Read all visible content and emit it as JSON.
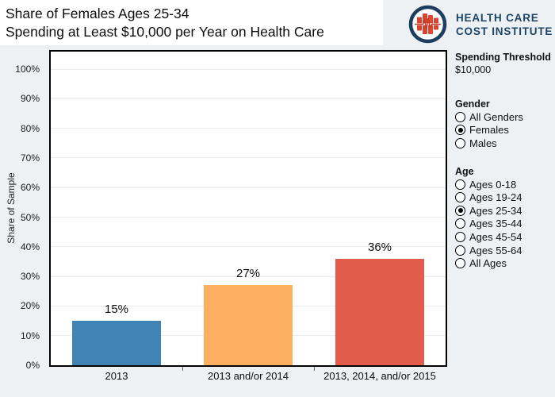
{
  "page": {
    "background": "#EDF1F4",
    "plot_background": "#FFFFFF"
  },
  "header": {
    "title_line1": "Share of Females Ages 25-34",
    "title_line2": "Spending at Least $10,000 per Year on Health Care"
  },
  "logo": {
    "icon": "hcci-bars-ekg-icon",
    "text_line1": "HEALTH CARE",
    "text_line2": "COST INSTITUTE",
    "navy": "#1C4467",
    "red": "#D9432F"
  },
  "filters": {
    "spending_threshold": {
      "label": "Spending Threshold",
      "value": "$10,000"
    },
    "gender": {
      "label": "Gender",
      "options": [
        "All Genders",
        "Females",
        "Males"
      ],
      "selected": "Females"
    },
    "age": {
      "label": "Age",
      "options": [
        "Ages 0-18",
        "Ages 19-24",
        "Ages 25-34",
        "Ages 35-44",
        "Ages 45-54",
        "Ages 55-64",
        "All Ages"
      ],
      "selected": "Ages 25-34"
    }
  },
  "chart_data": {
    "type": "bar",
    "categories": [
      "2013",
      "2013 and/or 2014",
      "2013, 2014, and/or 2015"
    ],
    "values": [
      15,
      27,
      36
    ],
    "data_labels": [
      "15%",
      "27%",
      "36%"
    ],
    "colors": [
      "#4283B6",
      "#FCAE61",
      "#E25B4B"
    ],
    "title": "Share of Females Ages 25-34 Spending at Least $10,000 per Year on Health Care",
    "xlabel": "",
    "ylabel": "Share of Sample",
    "y_ticks": [
      "0%",
      "10%",
      "20%",
      "30%",
      "40%",
      "50%",
      "60%",
      "70%",
      "80%",
      "90%",
      "100%"
    ],
    "ylim": [
      0,
      106
    ],
    "grid": true,
    "legend": "none"
  }
}
